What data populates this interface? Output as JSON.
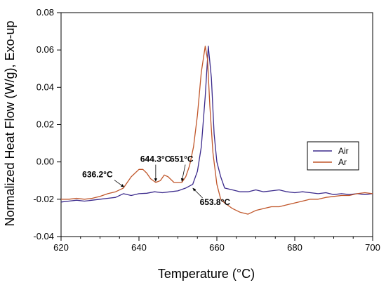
{
  "chart_data": {
    "type": "line",
    "xlabel": "Temperature (°C)",
    "ylabel": "Normalized Heat Flow (W/g), Exo-up",
    "xlim": [
      620,
      700
    ],
    "ylim": [
      -0.04,
      0.08
    ],
    "x_ticks": [
      620,
      640,
      660,
      680,
      700
    ],
    "y_ticks": [
      -0.04,
      -0.02,
      0.0,
      0.02,
      0.04,
      0.06,
      0.08
    ],
    "x_tick_labels": [
      "620",
      "640",
      "660",
      "680",
      "700"
    ],
    "y_tick_labels": [
      "-0.04",
      "-0.02",
      "0.00",
      "0.02",
      "0.04",
      "0.06",
      "0.08"
    ],
    "grid": false,
    "legend_position": "right",
    "series": [
      {
        "name": "Air",
        "color": "#3b2a8c",
        "points": [
          [
            620,
            -0.0215
          ],
          [
            622,
            -0.021
          ],
          [
            624,
            -0.0205
          ],
          [
            626,
            -0.021
          ],
          [
            628,
            -0.0205
          ],
          [
            630,
            -0.02
          ],
          [
            632,
            -0.0195
          ],
          [
            634,
            -0.019
          ],
          [
            636,
            -0.017
          ],
          [
            638,
            -0.018
          ],
          [
            640,
            -0.017
          ],
          [
            642,
            -0.0168
          ],
          [
            644,
            -0.016
          ],
          [
            646,
            -0.0165
          ],
          [
            648,
            -0.016
          ],
          [
            650,
            -0.0155
          ],
          [
            652,
            -0.014
          ],
          [
            653.8,
            -0.012
          ],
          [
            655,
            -0.005
          ],
          [
            656,
            0.008
          ],
          [
            657,
            0.035
          ],
          [
            657.8,
            0.062
          ],
          [
            658.6,
            0.045
          ],
          [
            659.3,
            0.015
          ],
          [
            660,
            0.0
          ],
          [
            661,
            -0.008
          ],
          [
            662,
            -0.014
          ],
          [
            664,
            -0.015
          ],
          [
            666,
            -0.016
          ],
          [
            668,
            -0.016
          ],
          [
            670,
            -0.015
          ],
          [
            672,
            -0.016
          ],
          [
            674,
            -0.0155
          ],
          [
            676,
            -0.015
          ],
          [
            678,
            -0.016
          ],
          [
            680,
            -0.0165
          ],
          [
            682,
            -0.016
          ],
          [
            684,
            -0.0165
          ],
          [
            686,
            -0.017
          ],
          [
            688,
            -0.0165
          ],
          [
            690,
            -0.0175
          ],
          [
            692,
            -0.017
          ],
          [
            694,
            -0.0175
          ],
          [
            696,
            -0.017
          ],
          [
            698,
            -0.0175
          ],
          [
            700,
            -0.017
          ]
        ]
      },
      {
        "name": "Ar",
        "color": "#c0562a",
        "points": [
          [
            620,
            -0.02
          ],
          [
            622,
            -0.02
          ],
          [
            624,
            -0.0195
          ],
          [
            626,
            -0.02
          ],
          [
            628,
            -0.0195
          ],
          [
            630,
            -0.0185
          ],
          [
            632,
            -0.017
          ],
          [
            634,
            -0.016
          ],
          [
            636,
            -0.014
          ],
          [
            638,
            -0.008
          ],
          [
            640,
            -0.004
          ],
          [
            641,
            -0.004
          ],
          [
            642,
            -0.006
          ],
          [
            643,
            -0.009
          ],
          [
            644.3,
            -0.011
          ],
          [
            645.5,
            -0.01
          ],
          [
            646.5,
            -0.007
          ],
          [
            647.5,
            -0.008
          ],
          [
            649,
            -0.011
          ],
          [
            651,
            -0.011
          ],
          [
            652,
            -0.008
          ],
          [
            653,
            -0.002
          ],
          [
            654,
            0.008
          ],
          [
            655,
            0.025
          ],
          [
            656,
            0.048
          ],
          [
            657,
            0.062
          ],
          [
            657.6,
            0.055
          ],
          [
            658.2,
            0.03
          ],
          [
            659,
            0.005
          ],
          [
            660,
            -0.012
          ],
          [
            661,
            -0.02
          ],
          [
            662,
            -0.022
          ],
          [
            664,
            -0.025
          ],
          [
            666,
            -0.027
          ],
          [
            668,
            -0.028
          ],
          [
            670,
            -0.026
          ],
          [
            672,
            -0.025
          ],
          [
            674,
            -0.024
          ],
          [
            676,
            -0.024
          ],
          [
            678,
            -0.023
          ],
          [
            680,
            -0.022
          ],
          [
            682,
            -0.021
          ],
          [
            684,
            -0.02
          ],
          [
            686,
            -0.02
          ],
          [
            688,
            -0.019
          ],
          [
            690,
            -0.0185
          ],
          [
            692,
            -0.018
          ],
          [
            694,
            -0.018
          ],
          [
            696,
            -0.017
          ],
          [
            698,
            -0.0165
          ],
          [
            700,
            -0.017
          ]
        ]
      }
    ],
    "annotations": [
      {
        "label": "636.2°C",
        "x": 636.2,
        "y": -0.0135
      },
      {
        "label": "644.3°C",
        "x": 644.3,
        "y": -0.0105
      },
      {
        "label": "651°C",
        "x": 651.0,
        "y": -0.0105
      },
      {
        "label": "653.8°C",
        "x": 653.8,
        "y": -0.014
      }
    ]
  }
}
